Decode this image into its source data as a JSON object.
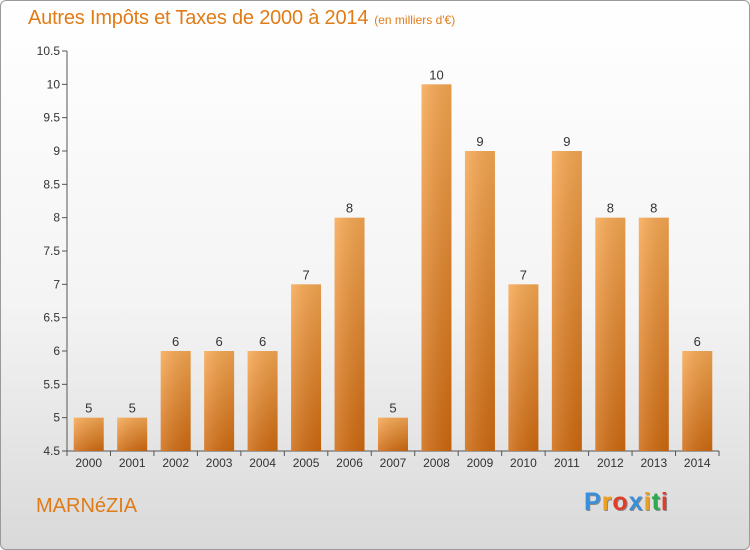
{
  "chart_data": {
    "type": "bar",
    "title": "Autres Impôts et Taxes de 2000 à 2014",
    "subtitle": "(en milliers d'€)",
    "categories": [
      "2000",
      "2001",
      "2002",
      "2003",
      "2004",
      "2005",
      "2006",
      "2007",
      "2008",
      "2009",
      "2010",
      "2011",
      "2012",
      "2013",
      "2014"
    ],
    "values": [
      5,
      5,
      6,
      6,
      6,
      7,
      8,
      5,
      10,
      9,
      7,
      9,
      8,
      8,
      6
    ],
    "ylim": [
      4.5,
      10.5
    ],
    "yticks": [
      "4.5",
      "5",
      "5.5",
      "6",
      "6.5",
      "7",
      "7.5",
      "8",
      "8.5",
      "9",
      "9.5",
      "10",
      "10.5"
    ],
    "grid": false,
    "bar_color": "#f09a3c"
  },
  "commune": "MARNéZIA",
  "logo": {
    "letters": [
      "P",
      "r",
      "o",
      "x",
      "i",
      "t",
      "i"
    ],
    "colors": [
      "#3a8fd8",
      "#f0a020",
      "#e03c28",
      "#3a8fd8",
      "#f0a020",
      "#2fa84f",
      "#e03c28"
    ]
  }
}
